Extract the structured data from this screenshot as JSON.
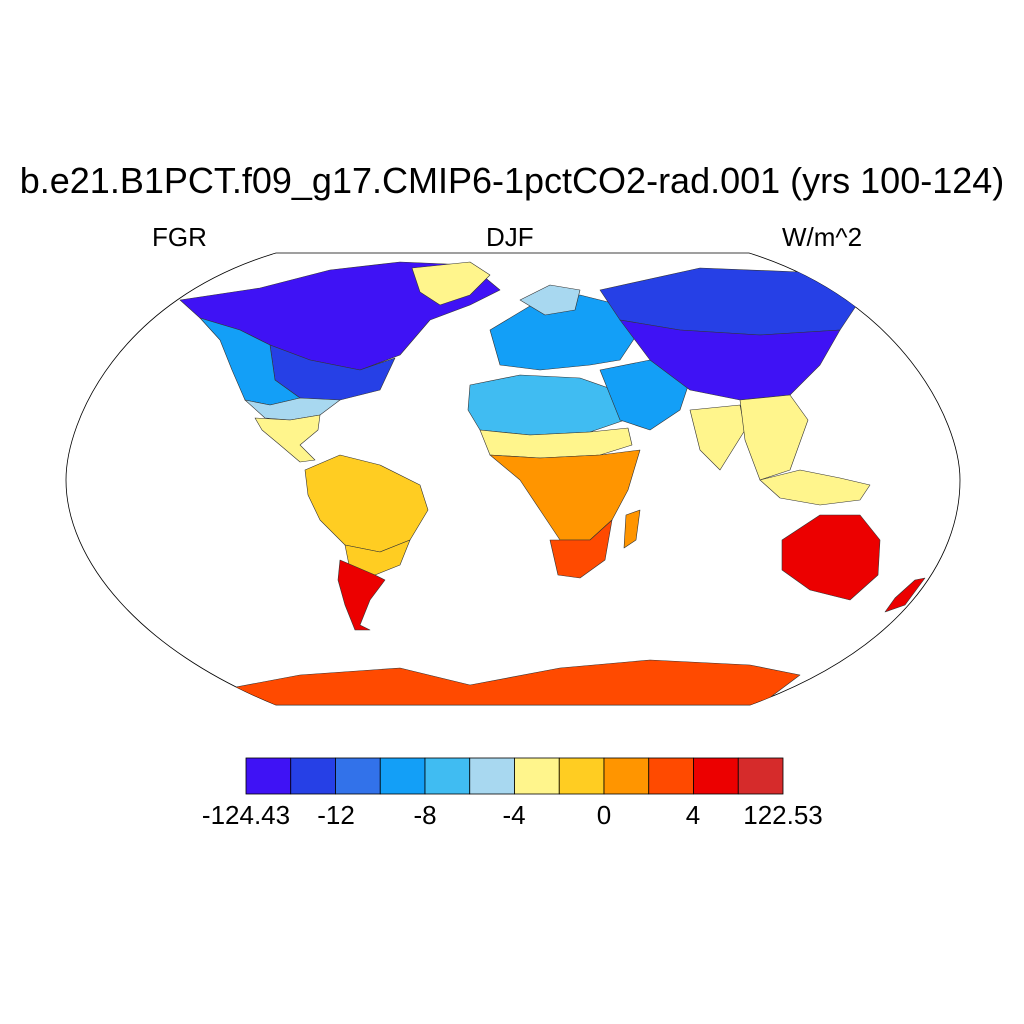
{
  "header": {
    "title": "b.e21.B1PCT.f09_g17.CMIP6-1pctCO2-rad.001 (yrs 100-124)",
    "variable": "FGR",
    "season": "DJF",
    "units": "W/m^2"
  },
  "map": {
    "projection": "Robinson",
    "field": "FGR",
    "regions": [
      {
        "name": "Canada / Arctic North America",
        "bin": 0
      },
      {
        "name": "Eastern North America",
        "bin": 1
      },
      {
        "name": "Western North America",
        "bin": 3
      },
      {
        "name": "Southern USA",
        "bin": 5
      },
      {
        "name": "Mexico / Central America",
        "bin": 6
      },
      {
        "name": "Greenland",
        "bin": 6
      },
      {
        "name": "Northern South America",
        "bin": 7
      },
      {
        "name": "Southern Brazil",
        "bin": 7
      },
      {
        "name": "Argentina / Patagonia",
        "bin": 10
      },
      {
        "name": "Europe",
        "bin": 3
      },
      {
        "name": "Scandinavia",
        "bin": 5
      },
      {
        "name": "Sahara / North Africa",
        "bin": 4
      },
      {
        "name": "Sahel",
        "bin": 6
      },
      {
        "name": "Central / Southern Africa",
        "bin": 8
      },
      {
        "name": "South Africa",
        "bin": 9
      },
      {
        "name": "Madagascar",
        "bin": 8
      },
      {
        "name": "Middle East",
        "bin": 3
      },
      {
        "name": "Siberia",
        "bin": 1
      },
      {
        "name": "Central / East Asia",
        "bin": 0
      },
      {
        "name": "India",
        "bin": 6
      },
      {
        "name": "Southeast Asia",
        "bin": 6
      },
      {
        "name": "Indonesia / New Guinea",
        "bin": 6
      },
      {
        "name": "Australia",
        "bin": 10
      },
      {
        "name": "New Zealand",
        "bin": 10
      },
      {
        "name": "Antarctica",
        "bin": 9
      }
    ]
  },
  "colorbar": {
    "colors": [
      "#3f12f5",
      "#2640e6",
      "#3272ea",
      "#139ff7",
      "#40bcf2",
      "#a8d8f0",
      "#fff58c",
      "#ffcd22",
      "#ff9500",
      "#ff4a00",
      "#ec0000",
      "#d62b2b"
    ],
    "labels": [
      "-124.43",
      "-12",
      "-8",
      "-4",
      "0",
      "4",
      "122.53"
    ]
  }
}
